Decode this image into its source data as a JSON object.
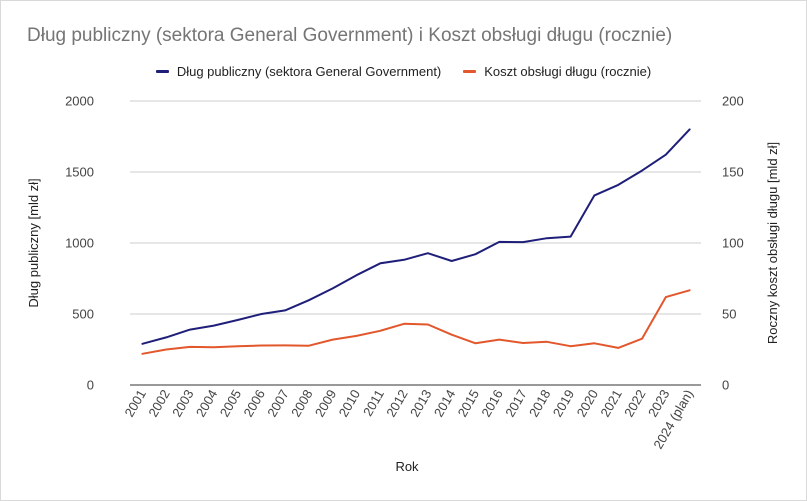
{
  "title": "Dług publiczny (sektora General Government) i Koszt obsługi długu (rocznie)",
  "chart_data": {
    "type": "line",
    "title": "Dług publiczny (sektora General Government) i Koszt obsługi długu (rocznie)",
    "xlabel": "Rok",
    "ylabel": "Dług publiczny [mld zł]",
    "ylabel_right": "Roczny koszt obsługi długu [mld zł]",
    "ylim": [
      0,
      2000
    ],
    "ylim_right": [
      0,
      200
    ],
    "yticks": [
      "0",
      "500",
      "1000",
      "1500",
      "2000"
    ],
    "yticks_right": [
      "0",
      "50",
      "100",
      "150",
      "200"
    ],
    "grid": true,
    "legend_position": "top",
    "categories": [
      "2001",
      "2002",
      "2003",
      "2004",
      "2005",
      "2006",
      "2007",
      "2008",
      "2009",
      "2010",
      "2011",
      "2012",
      "2013",
      "2014",
      "2015",
      "2016",
      "2017",
      "2018",
      "2019",
      "2020",
      "2021",
      "2022",
      "2023",
      "2024 (plan)"
    ],
    "series": [
      {
        "name": "Dług publiczny (sektora General Government)",
        "axis": "left",
        "color": "#1f1f7a",
        "values": [
          290,
          335,
          390,
          418,
          458,
          500,
          525,
          597,
          680,
          773,
          857,
          882,
          928,
          873,
          921,
          1008,
          1006,
          1034,
          1045,
          1335,
          1409,
          1510,
          1622,
          1800
        ]
      },
      {
        "name": "Koszt obsługi długu (rocznie)",
        "axis": "right",
        "color": "#e2572b",
        "values": [
          22,
          25,
          26.8,
          26.6,
          27.3,
          27.8,
          27.9,
          27.7,
          32,
          34.6,
          38.2,
          43.1,
          42.6,
          35.4,
          29.4,
          32,
          29.6,
          30.4,
          27.3,
          29.4,
          26.1,
          32.6,
          61.9,
          66.7
        ]
      }
    ]
  }
}
